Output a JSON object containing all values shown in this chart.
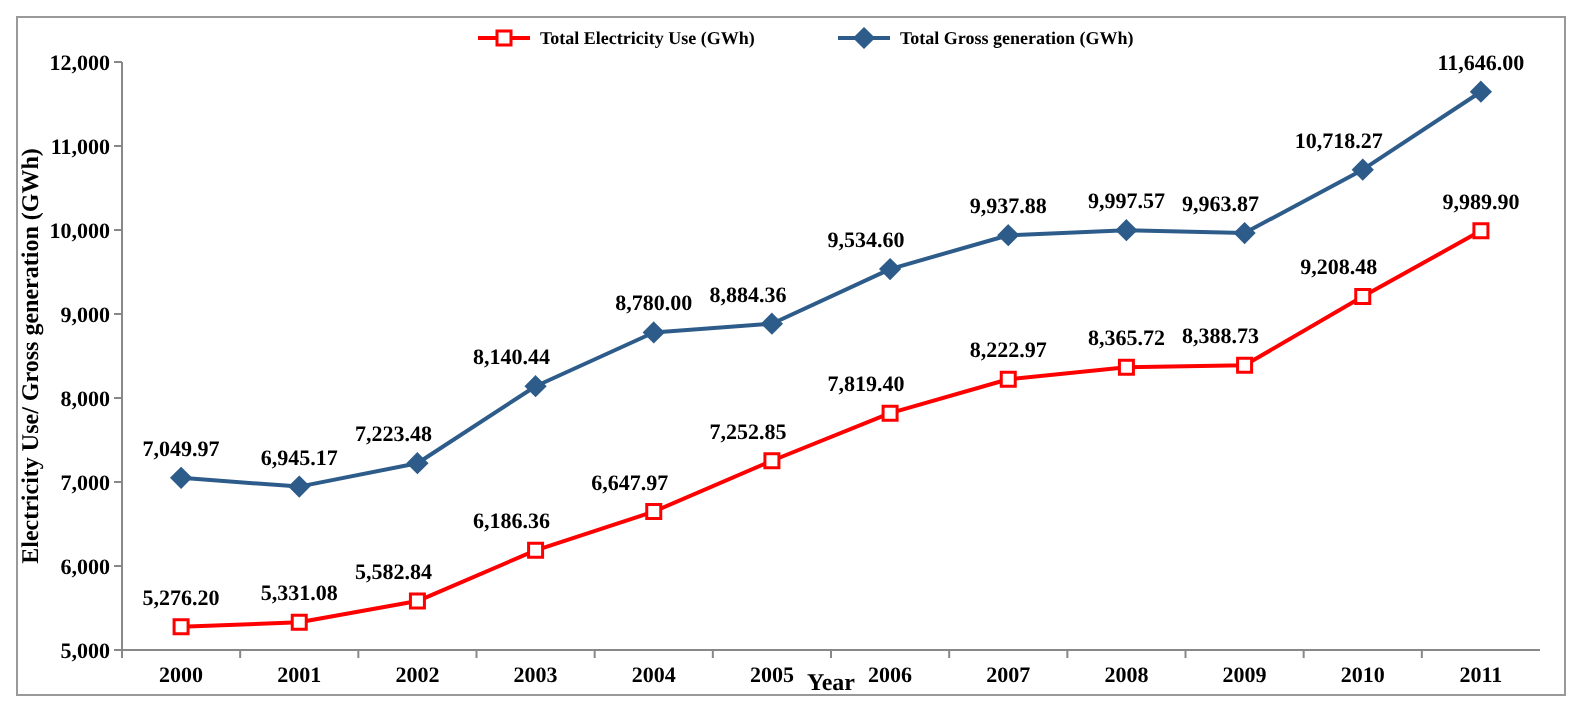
{
  "chart_data": {
    "type": "line",
    "xlabel": "Year",
    "ylabel": "Electricity Use/ Gross generation (GWh)",
    "categories": [
      "2000",
      "2001",
      "2002",
      "2003",
      "2004",
      "2005",
      "2006",
      "2007",
      "2008",
      "2009",
      "2010",
      "2011"
    ],
    "series": [
      {
        "name": "Total Electricity Use (GWh)",
        "color": "#ff0000",
        "marker": "square",
        "values": [
          5276.2,
          5331.08,
          5582.84,
          6186.36,
          6647.97,
          7252.85,
          7819.4,
          8222.97,
          8365.72,
          8388.73,
          9208.48,
          9989.9
        ],
        "value_labels": [
          "5,276.20",
          "5,331.08",
          "5,582.84",
          "6,186.36",
          "6,647.97",
          "7,252.85",
          "7,819.40",
          "8,222.97",
          "8,365.72",
          "8,388.73",
          "9,208.48",
          "9,989.90"
        ]
      },
      {
        "name": "Total Gross generation (GWh)",
        "color": "#2e5c8a",
        "marker": "diamond",
        "values": [
          7049.97,
          6945.17,
          7223.48,
          8140.44,
          8780.0,
          8884.36,
          9534.6,
          9937.88,
          9997.57,
          9963.87,
          10718.27,
          11646.0
        ],
        "value_labels": [
          "7,049.97",
          "6,945.17",
          "7,223.48",
          "8,140.44",
          "8,780.00",
          "8,884.36",
          "9,534.60",
          "9,937.88",
          "9,997.57",
          "9,963.87",
          "10,718.27",
          "11,646.00"
        ]
      }
    ],
    "ylim": [
      5000,
      12000
    ],
    "yticks": [
      {
        "value": 5000,
        "label": "5,000"
      },
      {
        "value": 6000,
        "label": "6,000"
      },
      {
        "value": 7000,
        "label": "7,000"
      },
      {
        "value": 8000,
        "label": "8,000"
      },
      {
        "value": 9000,
        "label": "9,000"
      },
      {
        "value": 10000,
        "label": "10,000"
      },
      {
        "value": 11000,
        "label": "11,000"
      },
      {
        "value": 12000,
        "label": "12,000"
      }
    ],
    "legend": "top"
  }
}
